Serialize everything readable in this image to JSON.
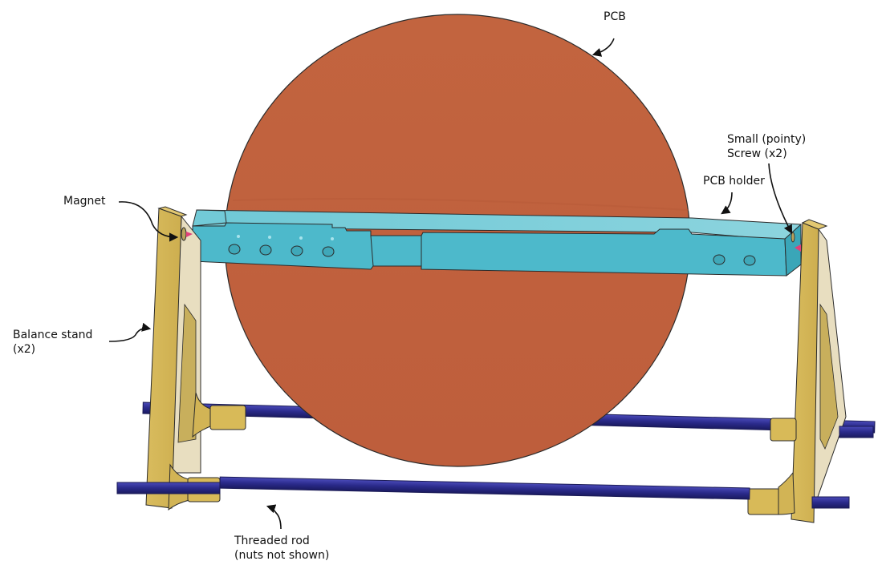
{
  "labels": {
    "pcb": "PCB",
    "screw": [
      "Small (pointy)",
      "Screw (x2)"
    ],
    "pcb_holder": "PCB holder",
    "magnet": "Magnet",
    "balance_stand": [
      "Balance stand",
      "(x2)"
    ],
    "threaded_rod": [
      "Threaded rod",
      "(nuts  not shown)"
    ]
  },
  "colors": {
    "pcb": "#C0633F",
    "holder": "#4DB9CB",
    "stand": "#D6B65A",
    "rod": "#2E2E8F",
    "screw": "#E0407A",
    "outline": "#2b2b2b"
  }
}
